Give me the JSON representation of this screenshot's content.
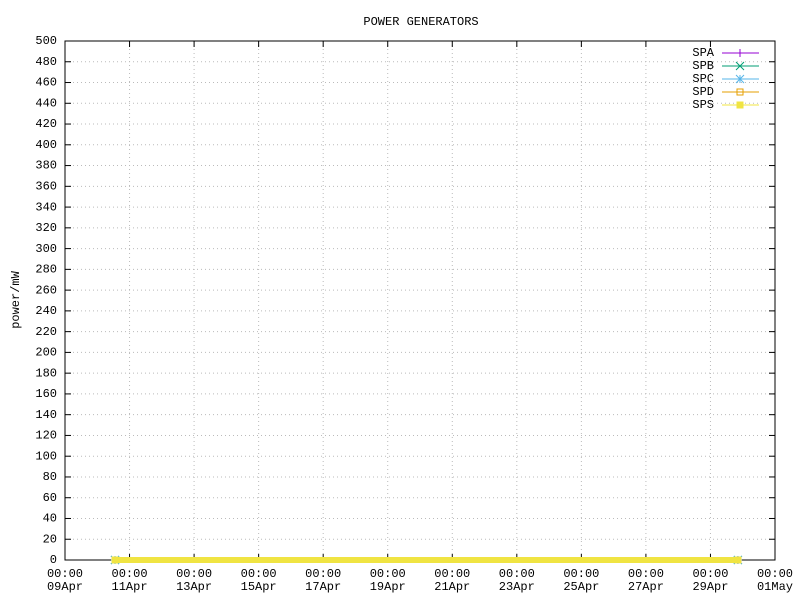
{
  "chart_data": {
    "type": "line",
    "title": "POWER GENERATORS",
    "y_label": "power/mW",
    "x": [
      1.55,
      20.85
    ],
    "series": [
      {
        "name": "SPA",
        "color": "#9400d3",
        "marker": "plus",
        "values": [
          0,
          0
        ]
      },
      {
        "name": "SPB",
        "color": "#009e73",
        "marker": "cross",
        "values": [
          0,
          0
        ]
      },
      {
        "name": "SPC",
        "color": "#56b4e9",
        "marker": "star",
        "values": [
          0,
          0
        ]
      },
      {
        "name": "SPD",
        "color": "#e69f00",
        "marker": "open-square",
        "values": [
          0,
          0
        ]
      },
      {
        "name": "SPS",
        "color": "#f0e442",
        "marker": "filled-square",
        "line_width": 6,
        "values": [
          0,
          0
        ]
      }
    ],
    "xlim": [
      0,
      22
    ],
    "xticks": [
      {
        "value": 0,
        "label": "00:00\n09Apr"
      },
      {
        "value": 2,
        "label": "00:00\n11Apr"
      },
      {
        "value": 4,
        "label": "00:00\n13Apr"
      },
      {
        "value": 6,
        "label": "00:00\n15Apr"
      },
      {
        "value": 8,
        "label": "00:00\n17Apr"
      },
      {
        "value": 10,
        "label": "00:00\n19Apr"
      },
      {
        "value": 12,
        "label": "00:00\n21Apr"
      },
      {
        "value": 14,
        "label": "00:00\n23Apr"
      },
      {
        "value": 16,
        "label": "00:00\n25Apr"
      },
      {
        "value": 18,
        "label": "00:00\n27Apr"
      },
      {
        "value": 20,
        "label": "00:00\n29Apr"
      },
      {
        "value": 22,
        "label": "00:00\n01May"
      }
    ],
    "ylim": [
      0,
      500
    ],
    "yticks": [
      0,
      20,
      40,
      60,
      80,
      100,
      120,
      140,
      160,
      180,
      200,
      220,
      240,
      260,
      280,
      300,
      320,
      340,
      360,
      380,
      400,
      420,
      440,
      460,
      480,
      500
    ],
    "grid": true,
    "legend": "top-right"
  }
}
